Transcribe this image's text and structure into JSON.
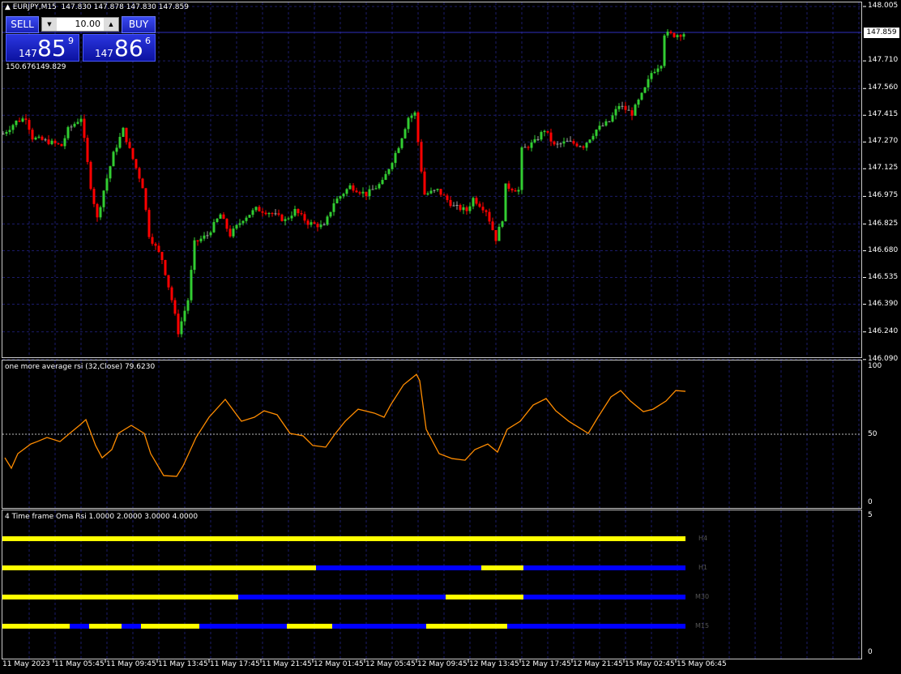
{
  "header": {
    "symbol": "EURJPY,M15",
    "ohlc": "147.830 147.878 147.830 147.859"
  },
  "trade_panel": {
    "sell_label": "SELL",
    "buy_label": "BUY",
    "volume": "10.00",
    "sell_price": {
      "prefix": "147",
      "big": "85",
      "sup": "9"
    },
    "buy_price": {
      "prefix": "147",
      "big": "86",
      "sup": "6"
    },
    "range_text": "150.676149.829"
  },
  "price_axis": {
    "labels": [
      "148.005",
      "147.710",
      "147.560",
      "147.415",
      "147.270",
      "147.125",
      "146.975",
      "146.825",
      "146.680",
      "146.535",
      "146.390",
      "146.240",
      "146.090"
    ],
    "current": "147.859"
  },
  "time_axis": {
    "labels": [
      "11 May 2023",
      "11 May 05:45",
      "11 May 09:45",
      "11 May 13:45",
      "11 May 17:45",
      "11 May 21:45",
      "12 May 01:45",
      "12 May 05:45",
      "12 May 09:45",
      "12 May 13:45",
      "12 May 17:45",
      "12 May 21:45",
      "15 May 02:45",
      "15 May 06:45"
    ]
  },
  "rsi_panel": {
    "title": "one more average rsi (32,Close) 79.6230",
    "levels": [
      "100",
      "50",
      "0"
    ],
    "color": "#ff8c00"
  },
  "tf_panel": {
    "title": "4 Time frame Oma Rsi 1.0000 2.0000 3.0000 4.0000",
    "levels": [
      "5",
      "0"
    ],
    "up_color": "#ffff00",
    "down_color": "#0000ff",
    "rows": [
      {
        "name": "H4",
        "segments": [
          [
            "up",
            0,
            211
          ]
        ]
      },
      {
        "name": "H1",
        "segments": [
          [
            "up",
            0,
            97
          ],
          [
            "down",
            97,
            148
          ],
          [
            "up",
            148,
            161
          ],
          [
            "down",
            161,
            211
          ]
        ]
      },
      {
        "name": "M30",
        "segments": [
          [
            "up",
            0,
            73
          ],
          [
            "down",
            73,
            137
          ],
          [
            "up",
            137,
            161
          ],
          [
            "down",
            161,
            211
          ]
        ]
      },
      {
        "name": "M15",
        "segments": [
          [
            "up",
            0,
            21
          ],
          [
            "down",
            21,
            27
          ],
          [
            "up",
            27,
            37
          ],
          [
            "down",
            37,
            43
          ],
          [
            "up",
            43,
            61
          ],
          [
            "down",
            61,
            88
          ],
          [
            "up",
            88,
            102
          ],
          [
            "down",
            102,
            131
          ],
          [
            "up",
            131,
            156
          ],
          [
            "down",
            156,
            211
          ]
        ]
      }
    ]
  },
  "chart_data": [
    {
      "type": "candlestick",
      "symbol": "EURJPY",
      "timeframe": "M15",
      "ylim": [
        146.09,
        148.005
      ],
      "candles": 211,
      "close_waypoints": [
        [
          1,
          147.315
        ],
        [
          5,
          147.381
        ],
        [
          8,
          147.403
        ],
        [
          10,
          147.293
        ],
        [
          15,
          147.271
        ],
        [
          19,
          147.249
        ],
        [
          21,
          147.337
        ],
        [
          25,
          147.403
        ],
        [
          28,
          147.03
        ],
        [
          30,
          146.854
        ],
        [
          32,
          147.008
        ],
        [
          35,
          147.205
        ],
        [
          38,
          147.337
        ],
        [
          40,
          147.227
        ],
        [
          44,
          147.03
        ],
        [
          46,
          146.766
        ],
        [
          50,
          146.634
        ],
        [
          53,
          146.414
        ],
        [
          55,
          146.239
        ],
        [
          58,
          146.414
        ],
        [
          60,
          146.722
        ],
        [
          64,
          146.766
        ],
        [
          68,
          146.876
        ],
        [
          71,
          146.766
        ],
        [
          75,
          146.854
        ],
        [
          79,
          146.906
        ],
        [
          83,
          146.889
        ],
        [
          88,
          146.845
        ],
        [
          91,
          146.898
        ],
        [
          95,
          146.832
        ],
        [
          100,
          146.81
        ],
        [
          103,
          146.942
        ],
        [
          108,
          147.03
        ],
        [
          113,
          146.986
        ],
        [
          118,
          147.051
        ],
        [
          123,
          147.249
        ],
        [
          126,
          147.403
        ],
        [
          128,
          147.425
        ],
        [
          130,
          147.117
        ],
        [
          131,
          146.986
        ],
        [
          135,
          147.008
        ],
        [
          140,
          146.92
        ],
        [
          144,
          146.898
        ],
        [
          146,
          146.964
        ],
        [
          150,
          146.898
        ],
        [
          153,
          146.744
        ],
        [
          155,
          146.854
        ],
        [
          156,
          147.03
        ],
        [
          160,
          147.008
        ],
        [
          161,
          147.227
        ],
        [
          165,
          147.271
        ],
        [
          168,
          147.337
        ],
        [
          171,
          147.249
        ],
        [
          175,
          147.271
        ],
        [
          180,
          147.249
        ],
        [
          184,
          147.337
        ],
        [
          188,
          147.381
        ],
        [
          191,
          147.469
        ],
        [
          195,
          147.425
        ],
        [
          199,
          147.557
        ],
        [
          201,
          147.645
        ],
        [
          204,
          147.697
        ],
        [
          205,
          147.859
        ],
        [
          208,
          147.85
        ],
        [
          211,
          147.859
        ]
      ]
    },
    {
      "type": "line",
      "name": "one more average rsi (32,Close)",
      "ylim": [
        0,
        100
      ],
      "level": 50,
      "points": [
        [
          1,
          32.7
        ],
        [
          3,
          25
        ],
        [
          5,
          35.7
        ],
        [
          9,
          42.8
        ],
        [
          11,
          44.6
        ],
        [
          14,
          47.6
        ],
        [
          18,
          44.6
        ],
        [
          21,
          50.6
        ],
        [
          24,
          56.5
        ],
        [
          26,
          60.7
        ],
        [
          29,
          41.7
        ],
        [
          31,
          32.7
        ],
        [
          34,
          38.7
        ],
        [
          36,
          50.6
        ],
        [
          40,
          56.5
        ],
        [
          44,
          50.6
        ],
        [
          46,
          35.7
        ],
        [
          50,
          19.6
        ],
        [
          54,
          19
        ],
        [
          56,
          26.8
        ],
        [
          60,
          47.6
        ],
        [
          64,
          62.5
        ],
        [
          69,
          75.6
        ],
        [
          74,
          59.5
        ],
        [
          78,
          62.5
        ],
        [
          81,
          67.2
        ],
        [
          85,
          64.3
        ],
        [
          89,
          50.6
        ],
        [
          93,
          48.8
        ],
        [
          96,
          41.7
        ],
        [
          100,
          40.5
        ],
        [
          103,
          50.6
        ],
        [
          106,
          59.5
        ],
        [
          110,
          68.4
        ],
        [
          115,
          65.5
        ],
        [
          118,
          62.5
        ],
        [
          120,
          71.4
        ],
        [
          124,
          86.3
        ],
        [
          128,
          94
        ],
        [
          129,
          89.3
        ],
        [
          131,
          53.6
        ],
        [
          135,
          35.7
        ],
        [
          139,
          32.1
        ],
        [
          143,
          30.9
        ],
        [
          146,
          38.7
        ],
        [
          150,
          42.8
        ],
        [
          153,
          36.9
        ],
        [
          156,
          53.6
        ],
        [
          160,
          59.5
        ],
        [
          164,
          71.4
        ],
        [
          168,
          76.2
        ],
        [
          171,
          67.2
        ],
        [
          175,
          59.5
        ],
        [
          179,
          53.6
        ],
        [
          181,
          50.6
        ],
        [
          184,
          62.5
        ],
        [
          188,
          77.4
        ],
        [
          191,
          82.1
        ],
        [
          194,
          74.4
        ],
        [
          198,
          66.6
        ],
        [
          201,
          68.4
        ],
        [
          205,
          74.4
        ],
        [
          208,
          82.1
        ],
        [
          211,
          81.5
        ]
      ]
    }
  ]
}
